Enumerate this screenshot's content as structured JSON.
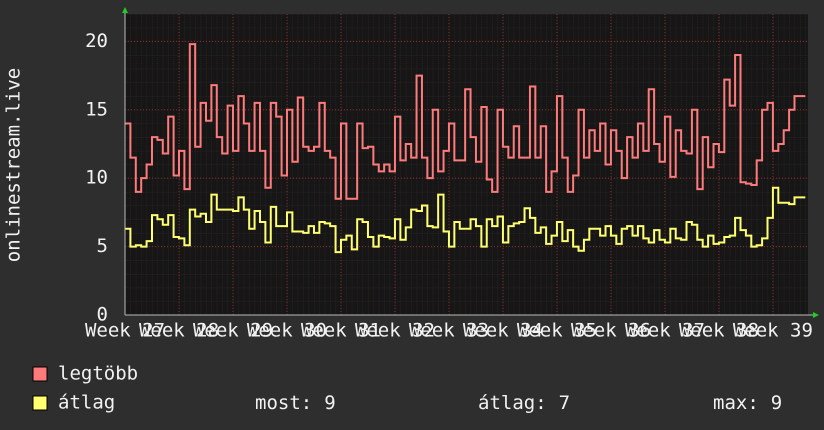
{
  "chart_data": {
    "type": "line",
    "ylabel": "onlinestream.live",
    "xlim": [
      0,
      126.5
    ],
    "xticks": [
      {
        "value": 0,
        "label": "Week 27"
      },
      {
        "value": 10,
        "label": "Week 28"
      },
      {
        "value": 20,
        "label": "Week 29"
      },
      {
        "value": 30,
        "label": "Week 30"
      },
      {
        "value": 40,
        "label": "Week 31"
      },
      {
        "value": 50,
        "label": "Week 32"
      },
      {
        "value": 60,
        "label": "Week 33"
      },
      {
        "value": 70,
        "label": "Week 34"
      },
      {
        "value": 80,
        "label": "Week 35"
      },
      {
        "value": 90,
        "label": "Week 36"
      },
      {
        "value": 100,
        "label": "Week 37"
      },
      {
        "value": 110,
        "label": "Week 38"
      },
      {
        "value": 120,
        "label": "Week 39"
      }
    ],
    "ylim": [
      0,
      22
    ],
    "yticks": [
      0,
      5,
      10,
      15,
      20
    ],
    "grid": true,
    "series": [
      {
        "name": "legtöbb",
        "color": "#ff7b7b",
        "values": [
          14,
          11.5,
          9,
          10,
          11,
          13,
          12.8,
          11.8,
          14.5,
          10.2,
          12,
          9.2,
          19.8,
          12.3,
          15.5,
          14.2,
          16.8,
          13,
          11.8,
          15.3,
          12,
          16,
          14,
          12,
          15.5,
          12,
          9.3,
          15.5,
          14.5,
          10.2,
          15,
          11.2,
          15.9,
          12.3,
          12,
          12.3,
          15.5,
          12,
          11.5,
          8.5,
          14,
          8.5,
          8.5,
          14,
          12.2,
          12.3,
          11,
          10.5,
          11,
          10.5,
          14.5,
          11.3,
          12.5,
          11.5,
          17.5,
          11.5,
          10,
          15,
          10.5,
          12,
          14,
          11.3,
          11.3,
          16.5,
          13,
          11.2,
          15.2,
          9.9,
          9,
          15,
          12.3,
          11.5,
          13.8,
          11.5,
          11.5,
          16.7,
          11.5,
          13.8,
          9,
          10.5,
          16,
          11.5,
          9,
          10.2,
          15,
          11.5,
          13.5,
          12,
          14,
          11,
          13.5,
          12,
          10,
          13,
          11.5,
          14,
          12,
          16.5,
          12.5,
          11.2,
          14.5,
          10.1,
          13.5,
          12,
          11.8,
          15,
          9.2,
          13,
          10.8,
          12.5,
          11.9,
          17.2,
          15.3,
          19,
          9.7,
          9.6,
          9.5,
          11.3,
          15,
          15.5,
          12,
          12.5,
          13.5,
          15,
          16,
          16
        ]
      },
      {
        "name": "átlag",
        "color": "#ffff70",
        "values": [
          6.3,
          5,
          5.1,
          5,
          5.4,
          7.3,
          7,
          6.6,
          7.3,
          5.7,
          5.6,
          5.1,
          7.7,
          7.2,
          7.4,
          6.8,
          8.8,
          7.7,
          7.7,
          7.7,
          7.6,
          8.6,
          7.7,
          6.3,
          7.6,
          6.8,
          5.3,
          7.9,
          6.5,
          6.5,
          7.5,
          6.1,
          6.1,
          6,
          6.5,
          6,
          6.8,
          6.7,
          6.5,
          4.6,
          5.5,
          5.8,
          4.8,
          7,
          6.8,
          5.7,
          5,
          5.8,
          5.7,
          5.6,
          7,
          5.5,
          6.4,
          7.7,
          7.6,
          8,
          6.5,
          6.4,
          8.8,
          6.1,
          5,
          6.8,
          6.3,
          6.3,
          7,
          6.5,
          5,
          7,
          6.5,
          7.2,
          5.3,
          6.5,
          6.7,
          6.8,
          7.8,
          7.1,
          6,
          6.4,
          5.2,
          5.8,
          6.8,
          5.4,
          6.2,
          5,
          4.7,
          5.5,
          6.3,
          6.3,
          5.8,
          6.5,
          5.8,
          5.2,
          6.3,
          6.5,
          5.8,
          6.5,
          5.6,
          5.3,
          6.2,
          5.5,
          5.3,
          6.3,
          5.6,
          5.5,
          6.8,
          6.6,
          5.5,
          5,
          5.8,
          5.2,
          5.3,
          5.7,
          5.8,
          7.1,
          6.2,
          5.8,
          5,
          5.1,
          5.6,
          7.1,
          9.3,
          8.2,
          8.2,
          8.1,
          8.6,
          8.6
        ]
      }
    ],
    "stats": [
      {
        "label": "most:",
        "value": 9
      },
      {
        "label": "átlag:",
        "value": 7
      },
      {
        "label": "max:",
        "value": 9
      }
    ]
  }
}
